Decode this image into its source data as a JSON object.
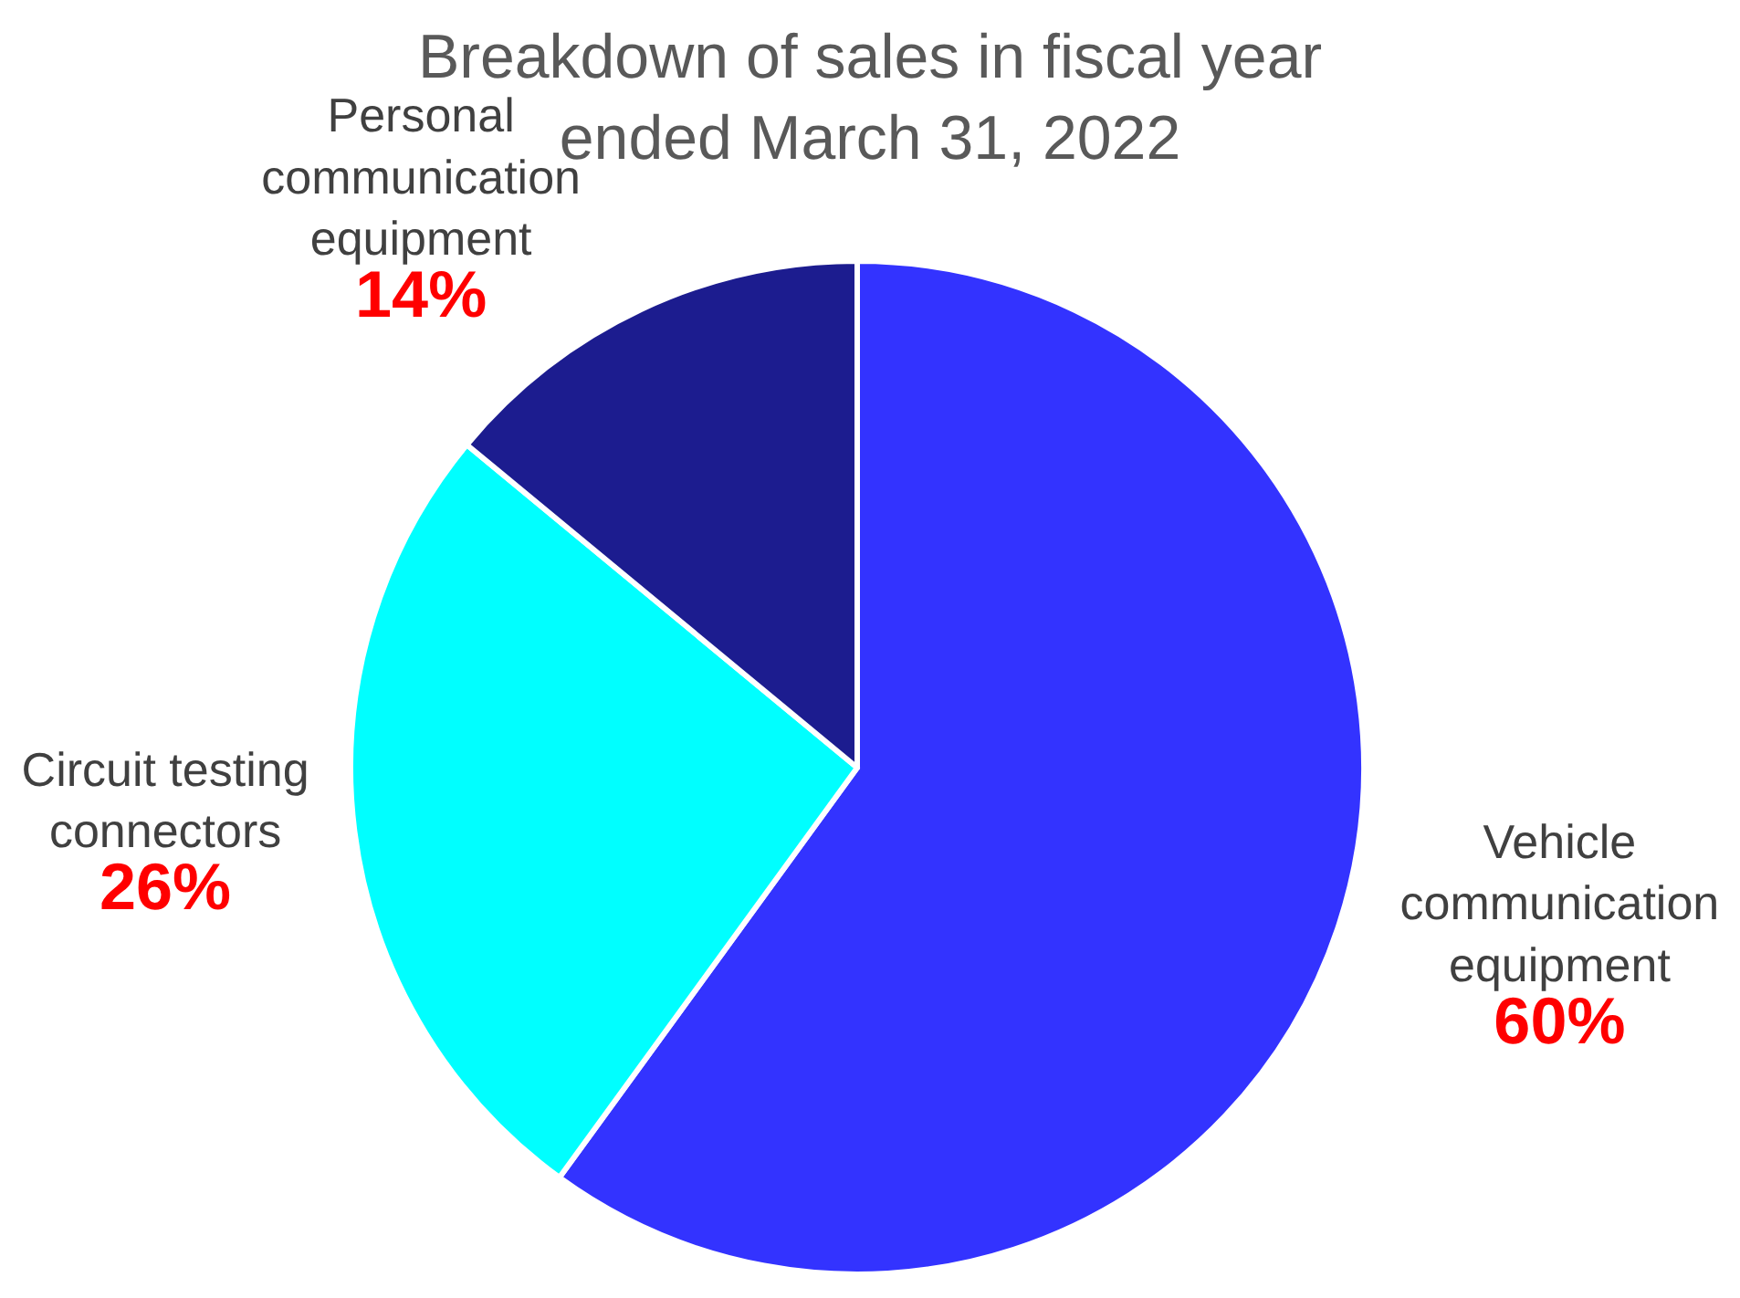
{
  "chart_data": {
    "type": "pie",
    "title": "Breakdown of sales in fiscal year ended March 31, 2022",
    "categories": [
      "Vehicle communication equipment",
      "Circuit testing connectors",
      "Personal communication equipment"
    ],
    "values": [
      60,
      26,
      14
    ],
    "colors": [
      "#3333ff",
      "#00ffff",
      "#1c1c8f"
    ],
    "value_labels": [
      "60%",
      "26%",
      "14%"
    ]
  }
}
